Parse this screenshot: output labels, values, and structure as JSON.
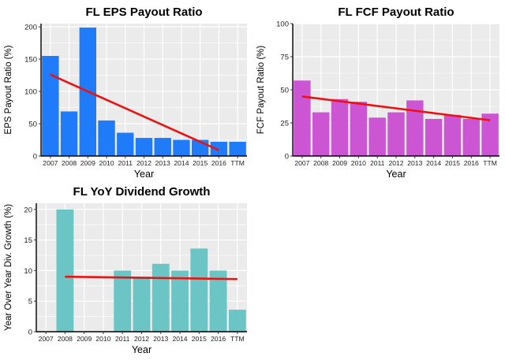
{
  "chart_data": [
    {
      "type": "bar",
      "title": "FL EPS Payout Ratio",
      "xlabel": "Year",
      "ylabel": "EPS Payout Ratio (%)",
      "categories": [
        "2007",
        "2008",
        "2009",
        "2010",
        "2011",
        "2012",
        "2013",
        "2014",
        "2015",
        "2016",
        "TTM"
      ],
      "values": [
        155,
        69,
        199,
        55,
        36,
        28,
        28,
        25,
        25,
        22,
        22
      ],
      "ylim": [
        0,
        205
      ],
      "yticks": [
        0,
        50,
        100,
        150,
        200
      ],
      "bar_color": "#1f7bf7",
      "trend": {
        "color": "#ee1111",
        "from_index": 0,
        "to_index": 9,
        "start": 126,
        "end": 9
      },
      "grid": true
    },
    {
      "type": "bar",
      "title": "FL FCF Payout Ratio",
      "xlabel": "Year",
      "ylabel": "FCF Payout Ratio (%)",
      "categories": [
        "2007",
        "2008",
        "2009",
        "2010",
        "2011",
        "2012",
        "2013",
        "2014",
        "2015",
        "2016",
        "TTM"
      ],
      "values": [
        57,
        33,
        43,
        41,
        29,
        33,
        42,
        28,
        31,
        28,
        32
      ],
      "ylim": [
        0,
        100
      ],
      "yticks": [
        0,
        25,
        50,
        75,
        100
      ],
      "bar_color": "#cc55d4",
      "trend": {
        "color": "#ee1111",
        "from_index": 0,
        "to_index": 10,
        "start": 45,
        "end": 27
      },
      "grid": true
    },
    {
      "type": "bar",
      "title": "FL YoY Dividend Growth",
      "xlabel": "Year",
      "ylabel": "Year Over Year Div. Growth (%)",
      "categories": [
        "2007",
        "2008",
        "2009",
        "2010",
        "2011",
        "2012",
        "2013",
        "2014",
        "2015",
        "2016",
        "TTM"
      ],
      "values": [
        0,
        20,
        0,
        0,
        10,
        9,
        11.1,
        10,
        13.6,
        10,
        3.6
      ],
      "ylim": [
        0,
        21
      ],
      "yticks": [
        0,
        5,
        10,
        15,
        20
      ],
      "bar_color": "#6cc5c5",
      "trend": {
        "color": "#ee1111",
        "from_index": 1,
        "to_index": 10,
        "start": 9,
        "end": 8.6
      },
      "grid": true
    }
  ]
}
